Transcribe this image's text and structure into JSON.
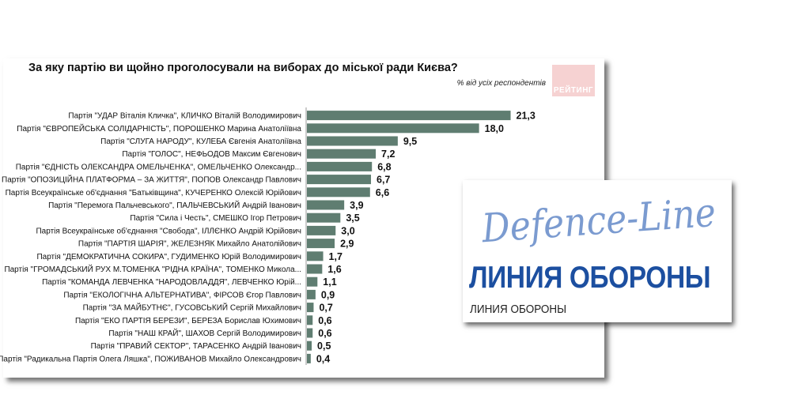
{
  "chart_data": {
    "type": "bar",
    "orientation": "horizontal",
    "title": "За яку партію ви щойно проголосували на виборах до міської ради Києва?",
    "subtitle": "% від усіх респондентів",
    "bar_color": "#5f7d71",
    "categories": [
      "Партія \"УДАР Віталія Кличка\", КЛИЧКО Віталій Володимирович",
      "Партія \"ЄВРОПЕЙСЬКА СОЛІДАРНІСТЬ\", ПОРОШЕНКО Марина Анатоліївна",
      "Партія \"СЛУГА НАРОДУ\", КУЛЕБА Євгенія Анатоліївна",
      "Партія \"ГОЛОС\", НЕФЬОДОВ Максим Євгенович",
      "Партія \"ЄДНІСТЬ ОЛЕКСАНДРА ОМЕЛЬЧЕНКА\", ОМЕЛЬЧЕНКО Олександр...",
      "Партія \"ОПОЗИЦІЙНА ПЛАТФОРМА – ЗА ЖИТТЯ\", ПОПОВ Олександр Павлович",
      "Партія Всеукраїнське об'єднання \"Батьківщина\", КУЧЕРЕНКО Олексій Юрійович",
      "Партія \"Перемога Пальчевського\", ПАЛЬЧЕВСЬКИЙ Андрій Іванович",
      "Партія \"Сила і Честь\", СМЕШКО Ігор Петрович",
      "Партія Всеукраїнське об'єднання \"Свобода\", ІЛЛЄНКО Андрій Юрійович",
      "Партія \"ПАРТІЯ ШАРІЯ\", ЖЕЛЕЗНЯК Михайло Анатолійович",
      "Партія \"ДЕМОКРАТИЧНА СОКИРА\", ГУДИМЕНКО Юрій Володимирович",
      "Партія \"ГРОМАДСЬКИЙ РУХ М.ТОМЕНКА \"РІДНА КРАЇНА\", ТОМЕНКО Микола...",
      "Партія \"КОМАНДА ЛЕВЧЕНКА \"НАРОДОВЛАДДЯ\", ЛЕВЧЕНКО Юрій...",
      "Партія \"ЕКОЛОГІЧНА АЛЬТЕРНАТИВА\", ФІРСОВ Єгор Павлович",
      "Партія \"ЗА МАЙБУТНЄ\", ГУСОВСЬКИЙ Сергій Михайлович",
      "Партія \"ЕКО ПАРТІЯ БЕРЕЗИ\", БЕРЕЗА Борислав Юхимович",
      "Партія \"НАШ КРАЙ\", ШАХОВ Сергій Володимирович",
      "Партія \"ПРАВИЙ СЕКТОР\", ТАРАСЕНКО Андрій Іванович",
      "Партія \"Радикальна Партія Олега Ляшка\", ПОЖИВАНОВ Михайло Олександрович"
    ],
    "values": [
      21.3,
      18.0,
      9.5,
      7.2,
      6.8,
      6.7,
      6.6,
      3.9,
      3.5,
      3.0,
      2.9,
      1.7,
      1.6,
      1.1,
      0.9,
      0.7,
      0.6,
      0.6,
      0.5,
      0.4
    ],
    "value_labels": [
      "21,3",
      "18,0",
      "9,5",
      "7,2",
      "6,8",
      "6,7",
      "6,6",
      "3,9",
      "3,5",
      "3,0",
      "2,9",
      "1,7",
      "1,6",
      "1,1",
      "0,9",
      "0,7",
      "0,6",
      "0,6",
      "0,5",
      "0,4"
    ],
    "xlim": [
      0,
      22
    ],
    "grid": false,
    "legend": "none"
  },
  "rating_logo": {
    "text": "РЕЙТИНГ",
    "color": "#f6d2d2"
  },
  "watermark": {
    "script_text": "Defence-Line",
    "title": "ЛИНИЯ ОБОРОНЫ",
    "subtitle": "ЛИНИЯ ОБОРОНЫ",
    "script_color": "#7b9bd0",
    "title_color": "#1c4fa0"
  }
}
